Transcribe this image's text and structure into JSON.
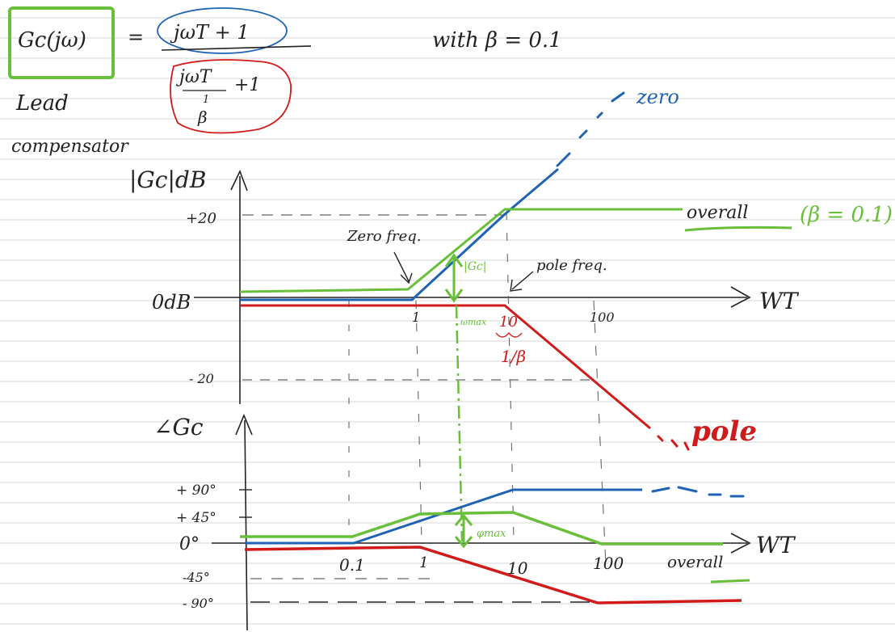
{
  "formula": {
    "lhs": "Gc(jω)",
    "equals": "=",
    "numerator": "jωT + 1",
    "denominator_main": "jωT",
    "denominator_frac_num": "1",
    "denominator_frac_den": "β",
    "denominator_plus": "+1",
    "with_text": "with β = 0.1"
  },
  "left_note": {
    "line1": "Lead",
    "line2": "compensator"
  },
  "magnitude_plot": {
    "y_label": "|Gc|dB",
    "tick_plus20": "+20",
    "tick_0": "0dB",
    "tick_minus20": "- 20",
    "x_axis_label": "WT",
    "x_tick_1": "1",
    "x_tick_10": "10",
    "x_tick_100": "100",
    "annotation_zero_freq": "Zero freq.",
    "annotation_pole_freq": "pole freq.",
    "annotation_gc": "|Gc|",
    "annotation_wmax": "ωmax",
    "annotation_inv_beta": "1/β",
    "label_zero": "zero",
    "label_pole": "pole",
    "label_overall": "overall",
    "label_beta": "(β = 0.1)"
  },
  "phase_plot": {
    "y_label": "∠Gc",
    "tick_plus90": "+ 90°",
    "tick_plus45": "+ 45°",
    "tick_0": "0°",
    "tick_minus45": "-45°",
    "tick_minus90": "- 90°",
    "x_axis_label": "WT",
    "x_tick_01": "0.1",
    "x_tick_1": "1",
    "x_tick_10": "10",
    "x_tick_100": "100",
    "annotation_phimax": "φmax",
    "label_overall": "overall"
  },
  "colors": {
    "zero": "#1f63b4",
    "pole": "#d11a1a",
    "overall": "#6abf3a",
    "ink": "#222222",
    "ruled": "#d7d7d7"
  }
}
